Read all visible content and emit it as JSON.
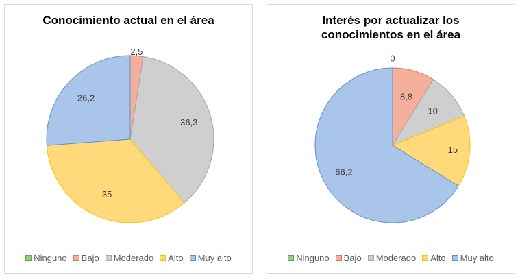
{
  "chart_data": [
    {
      "type": "pie",
      "title": "Conocimiento actual en el área",
      "categories": [
        "Ninguno",
        "Bajo",
        "Moderado",
        "Alto",
        "Muy alto"
      ],
      "values": [
        0,
        2.5,
        36.3,
        35,
        26.2
      ],
      "labels": [
        "",
        "2,5",
        "36,3",
        "35",
        "26,2"
      ],
      "legend_position": "bottom"
    },
    {
      "type": "pie",
      "title": "Interés por actualizar los conocimientos en el área",
      "categories": [
        "Ninguno",
        "Bajo",
        "Moderado",
        "Alto",
        "Muy alto"
      ],
      "values": [
        0,
        8.8,
        10,
        15,
        66.2
      ],
      "labels": [
        "0",
        "8,8",
        "10",
        "15",
        "66,2"
      ],
      "legend_position": "bottom"
    }
  ],
  "colors": {
    "fills": [
      "#8fd17f",
      "#f4b09a",
      "#cfcfcf",
      "#ffd97a",
      "#a9c5ea"
    ],
    "strokes": [
      "#5fa84a",
      "#e07a55",
      "#a5a5a5",
      "#ffc000",
      "#5b8fd1"
    ]
  }
}
